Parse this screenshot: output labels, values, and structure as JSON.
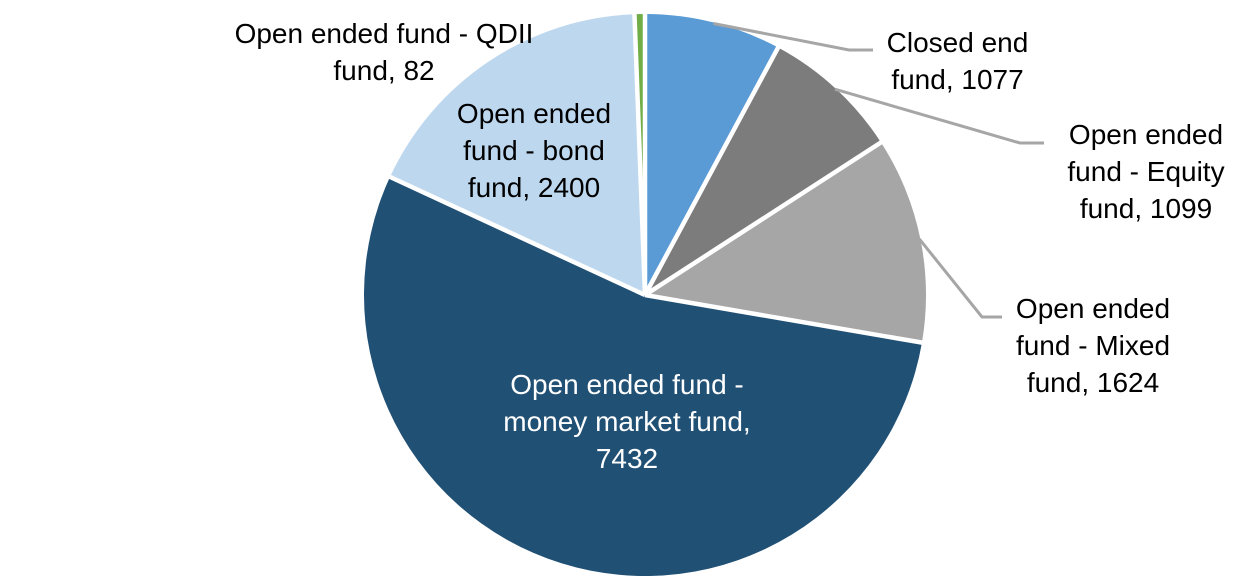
{
  "chart_data": {
    "type": "pie",
    "title": "",
    "legend": "none",
    "total": 13714,
    "start_angle_deg": 0,
    "direction": "clockwise",
    "background_color": "#FFFFFF",
    "slice_border_color": "#FFFFFF",
    "leader_line_color": "#A6A6A6",
    "label_text_color": "#000000",
    "inside_label_text_color": "#FFFFFF",
    "series": [
      {
        "name": "Closed end fund",
        "value": 1077,
        "color": "#5B9BD5",
        "label": "Closed end\nfund, 1077",
        "label_position": "outside-right",
        "leader_line": true
      },
      {
        "name": "Open ended fund - Equity fund",
        "value": 1099,
        "color": "#7C7C7C",
        "label": "Open ended\nfund - Equity\nfund, 1099",
        "label_position": "outside-right",
        "leader_line": true
      },
      {
        "name": "Open ended fund - Mixed fund",
        "value": 1624,
        "color": "#A6A6A6",
        "label": "Open ended\nfund - Mixed\nfund, 1624",
        "label_position": "outside-right",
        "leader_line": true
      },
      {
        "name": "Open ended fund - money market fund",
        "value": 7432,
        "color": "#215075",
        "label": "Open ended fund -\nmoney market fund,\n7432",
        "label_position": "inside",
        "leader_line": false
      },
      {
        "name": "Open ended fund - bond fund",
        "value": 2400,
        "color": "#BDD7EE",
        "label": "Open ended\nfund - bond\nfund, 2400",
        "label_position": "outside-left-on-slice",
        "leader_line": false
      },
      {
        "name": "Open ended fund - QDII fund",
        "value": 82,
        "color": "#70AD47",
        "label": "Open ended fund - QDII\nfund, 82",
        "label_position": "outside-top-left",
        "leader_line": false
      }
    ]
  }
}
